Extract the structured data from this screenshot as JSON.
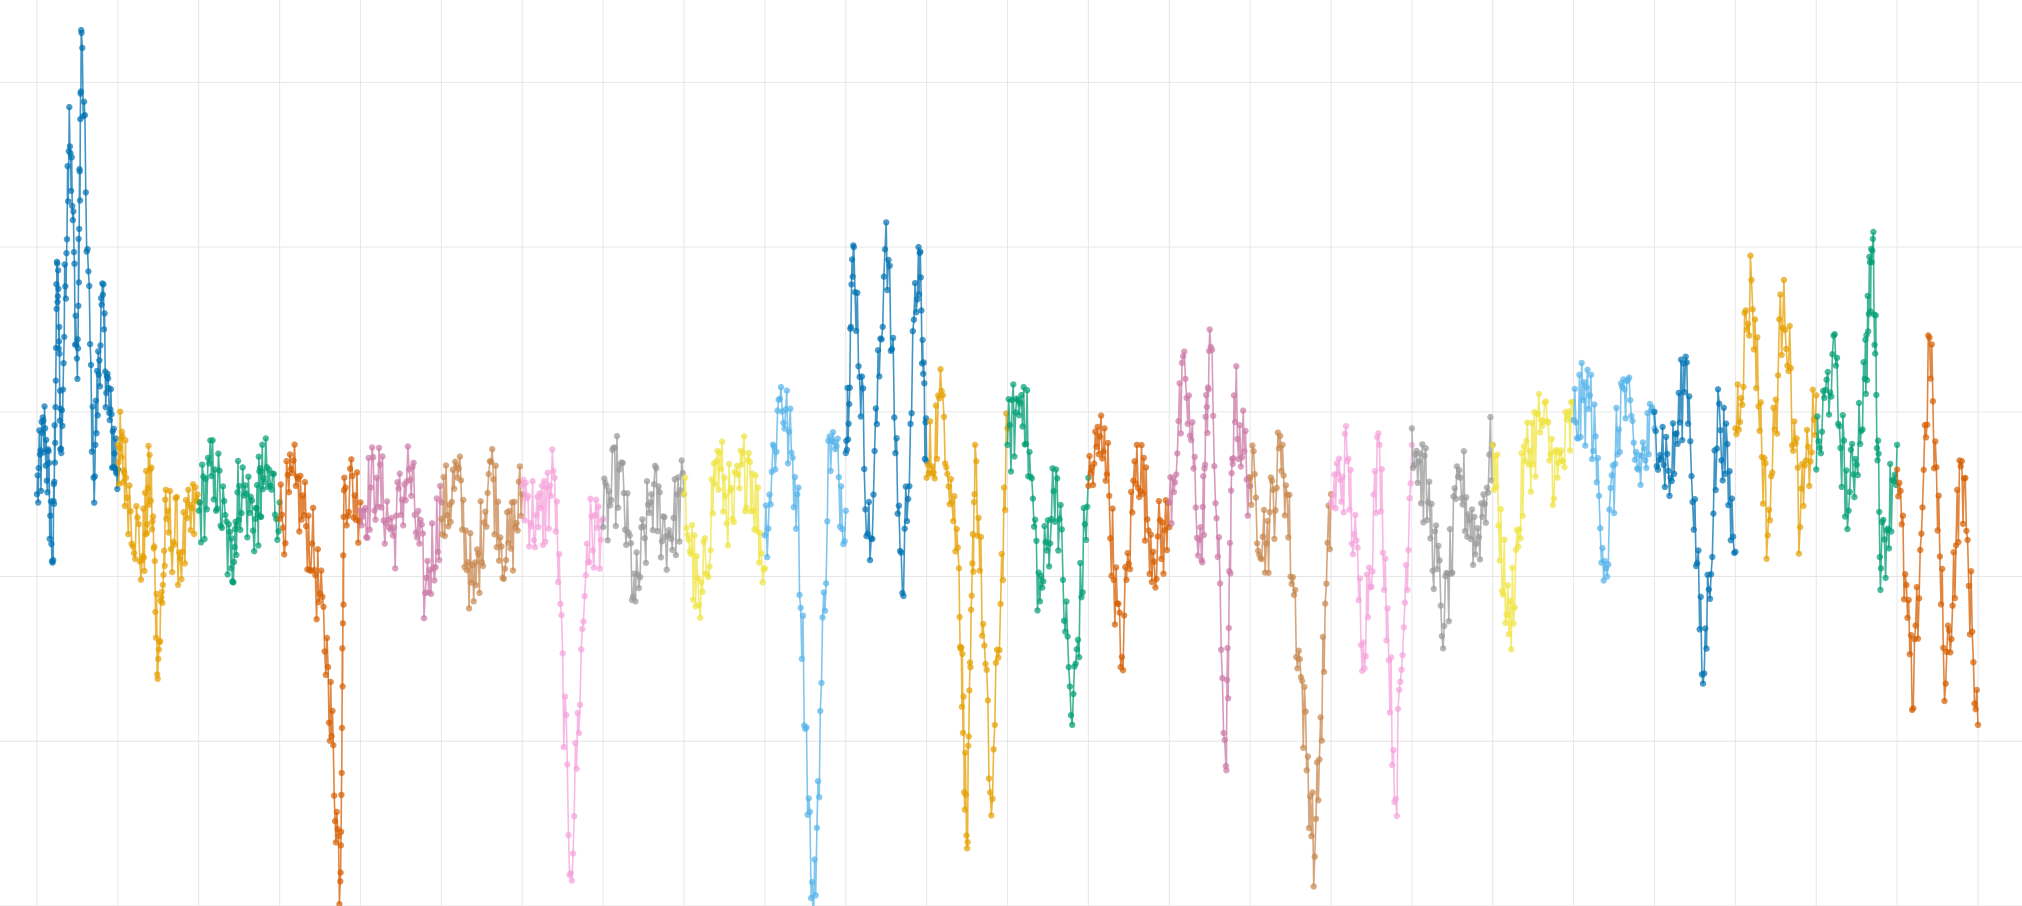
{
  "chart_data": {
    "type": "line",
    "title": "",
    "xlabel": "",
    "ylabel": "",
    "markers": true,
    "grid": true,
    "legend": "none",
    "xlim": [
      0,
      24
    ],
    "ylim": [
      -5,
      6
    ],
    "x_grid_interval": 1,
    "y_grid_interval": 2,
    "palette": [
      "#0072B2",
      "#E69F00",
      "#009E73",
      "#D55E00",
      "#CC79A7",
      "#C8874F",
      "#F5A3DB",
      "#999999",
      "#F0E442",
      "#56B4E9"
    ],
    "series": [
      {
        "color": "#0072B2",
        "x": [
          0.0,
          0.1,
          0.2,
          0.25,
          0.3,
          0.4,
          0.5,
          0.55,
          0.7,
          0.8,
          0.9,
          1.0
        ],
        "values": [
          0.0,
          0.8,
          -0.8,
          2.8,
          0.5,
          4.7,
          1.4,
          5.6,
          0.2,
          2.3,
          0.9,
          0.3
        ]
      },
      {
        "color": "#E69F00",
        "x": [
          1.0,
          1.1,
          1.3,
          1.4,
          1.5,
          1.6,
          1.8,
          2.0
        ],
        "values": [
          0.6,
          0.2,
          -0.8,
          0.3,
          -2.0,
          -0.3,
          -0.7,
          -0.1
        ]
      },
      {
        "color": "#009E73",
        "x": [
          2.0,
          2.2,
          2.4,
          2.5,
          2.7,
          2.8,
          3.0
        ],
        "values": [
          -0.2,
          0.3,
          -0.9,
          0.1,
          -0.3,
          0.2,
          -0.1
        ]
      },
      {
        "color": "#D55E00",
        "x": [
          3.0,
          3.2,
          3.4,
          3.6,
          3.75,
          3.8,
          4.0
        ],
        "values": [
          -0.3,
          0.1,
          -0.6,
          -2.1,
          -4.7,
          0.2,
          -0.1
        ]
      },
      {
        "color": "#CC79A7",
        "x": [
          4.0,
          4.2,
          4.4,
          4.6,
          4.8,
          5.0
        ],
        "values": [
          -0.2,
          0.2,
          -0.5,
          0.3,
          -1.2,
          -0.1
        ]
      },
      {
        "color": "#C8874F",
        "x": [
          5.0,
          5.2,
          5.4,
          5.6,
          5.8,
          6.0
        ],
        "values": [
          -0.3,
          0.2,
          -1.3,
          0.4,
          -0.8,
          0.0
        ]
      },
      {
        "color": "#F5A3DB",
        "x": [
          6.0,
          6.2,
          6.4,
          6.6,
          6.8,
          7.0
        ],
        "values": [
          0.1,
          -0.4,
          0.2,
          -4.6,
          -0.6,
          -0.3
        ]
      },
      {
        "color": "#999999",
        "x": [
          7.0,
          7.2,
          7.4,
          7.6,
          7.8,
          8.0
        ],
        "values": [
          -0.4,
          0.3,
          -1.3,
          0.0,
          -0.5,
          0.0
        ]
      },
      {
        "color": "#F0E442",
        "x": [
          8.0,
          8.2,
          8.4,
          8.6,
          8.8,
          9.0
        ],
        "values": [
          0.0,
          -1.5,
          0.4,
          -0.3,
          0.5,
          -0.9
        ]
      },
      {
        "color": "#56B4E9",
        "x": [
          9.0,
          9.2,
          9.4,
          9.6,
          9.8,
          10.0
        ],
        "values": [
          -0.5,
          1.3,
          0.0,
          -5.3,
          0.7,
          -0.2
        ]
      },
      {
        "color": "#0072B2",
        "x": [
          10.0,
          10.1,
          10.3,
          10.5,
          10.7,
          10.9,
          11.0
        ],
        "values": [
          0.5,
          3.0,
          -0.8,
          3.3,
          -1.2,
          3.0,
          0.4
        ]
      },
      {
        "color": "#E69F00",
        "x": [
          11.0,
          11.2,
          11.4,
          11.5,
          11.6,
          11.8,
          12.0
        ],
        "values": [
          0.2,
          1.2,
          -0.9,
          -4.3,
          0.6,
          -3.9,
          0.8
        ]
      },
      {
        "color": "#009E73",
        "x": [
          12.0,
          12.2,
          12.4,
          12.6,
          12.8,
          13.0
        ],
        "values": [
          0.6,
          1.3,
          -1.3,
          0.3,
          -2.8,
          0.2
        ]
      },
      {
        "color": "#D55E00",
        "x": [
          13.0,
          13.2,
          13.4,
          13.6,
          13.8,
          14.0
        ],
        "values": [
          0.1,
          0.8,
          -2.1,
          0.6,
          -0.7,
          -0.4
        ]
      },
      {
        "color": "#CC79A7",
        "x": [
          14.0,
          14.2,
          14.4,
          14.5,
          14.7,
          14.8,
          15.0
        ],
        "values": [
          -0.1,
          1.4,
          -0.8,
          2.0,
          -3.3,
          1.2,
          0.1
        ]
      },
      {
        "color": "#C8874F",
        "x": [
          15.0,
          15.2,
          15.4,
          15.6,
          15.8,
          16.0
        ],
        "values": [
          0.2,
          -0.6,
          0.6,
          -1.9,
          -4.4,
          0.0
        ]
      },
      {
        "color": "#F5A3DB",
        "x": [
          16.0,
          16.2,
          16.4,
          16.6,
          16.8,
          17.0
        ],
        "values": [
          -0.1,
          0.4,
          -1.8,
          0.6,
          -3.7,
          0.6
        ]
      },
      {
        "color": "#999999",
        "x": [
          17.0,
          17.2,
          17.4,
          17.6,
          17.8,
          18.0
        ],
        "values": [
          0.8,
          -0.1,
          -1.6,
          0.2,
          -0.6,
          0.6
        ]
      },
      {
        "color": "#F0E442",
        "x": [
          18.0,
          18.2,
          18.4,
          18.6,
          18.8,
          19.0
        ],
        "values": [
          0.6,
          -1.7,
          0.4,
          0.9,
          0.2,
          0.9
        ]
      },
      {
        "color": "#56B4E9",
        "x": [
          19.0,
          19.2,
          19.4,
          19.6,
          19.8,
          20.0
        ],
        "values": [
          0.9,
          1.2,
          -0.9,
          1.3,
          0.3,
          0.8
        ]
      },
      {
        "color": "#0072B2",
        "x": [
          20.0,
          20.2,
          20.4,
          20.6,
          20.8,
          21.0
        ],
        "values": [
          1.0,
          0.2,
          1.6,
          -2.3,
          1.1,
          -0.7
        ]
      },
      {
        "color": "#E69F00",
        "x": [
          21.0,
          21.2,
          21.4,
          21.6,
          21.8,
          22.0
        ],
        "values": [
          0.8,
          2.6,
          -0.5,
          2.6,
          -0.4,
          1.2
        ]
      },
      {
        "color": "#009E73",
        "x": [
          22.0,
          22.2,
          22.4,
          22.6,
          22.7,
          22.8,
          23.0
        ],
        "values": [
          0.3,
          1.7,
          -0.2,
          1.4,
          3.1,
          -0.9,
          0.6
        ]
      },
      {
        "color": "#D55E00",
        "x": [
          23.0,
          23.2,
          23.4,
          23.6,
          23.8,
          24.0
        ],
        "values": [
          0.3,
          -2.6,
          1.9,
          -2.3,
          0.4,
          -2.8
        ]
      }
    ]
  }
}
